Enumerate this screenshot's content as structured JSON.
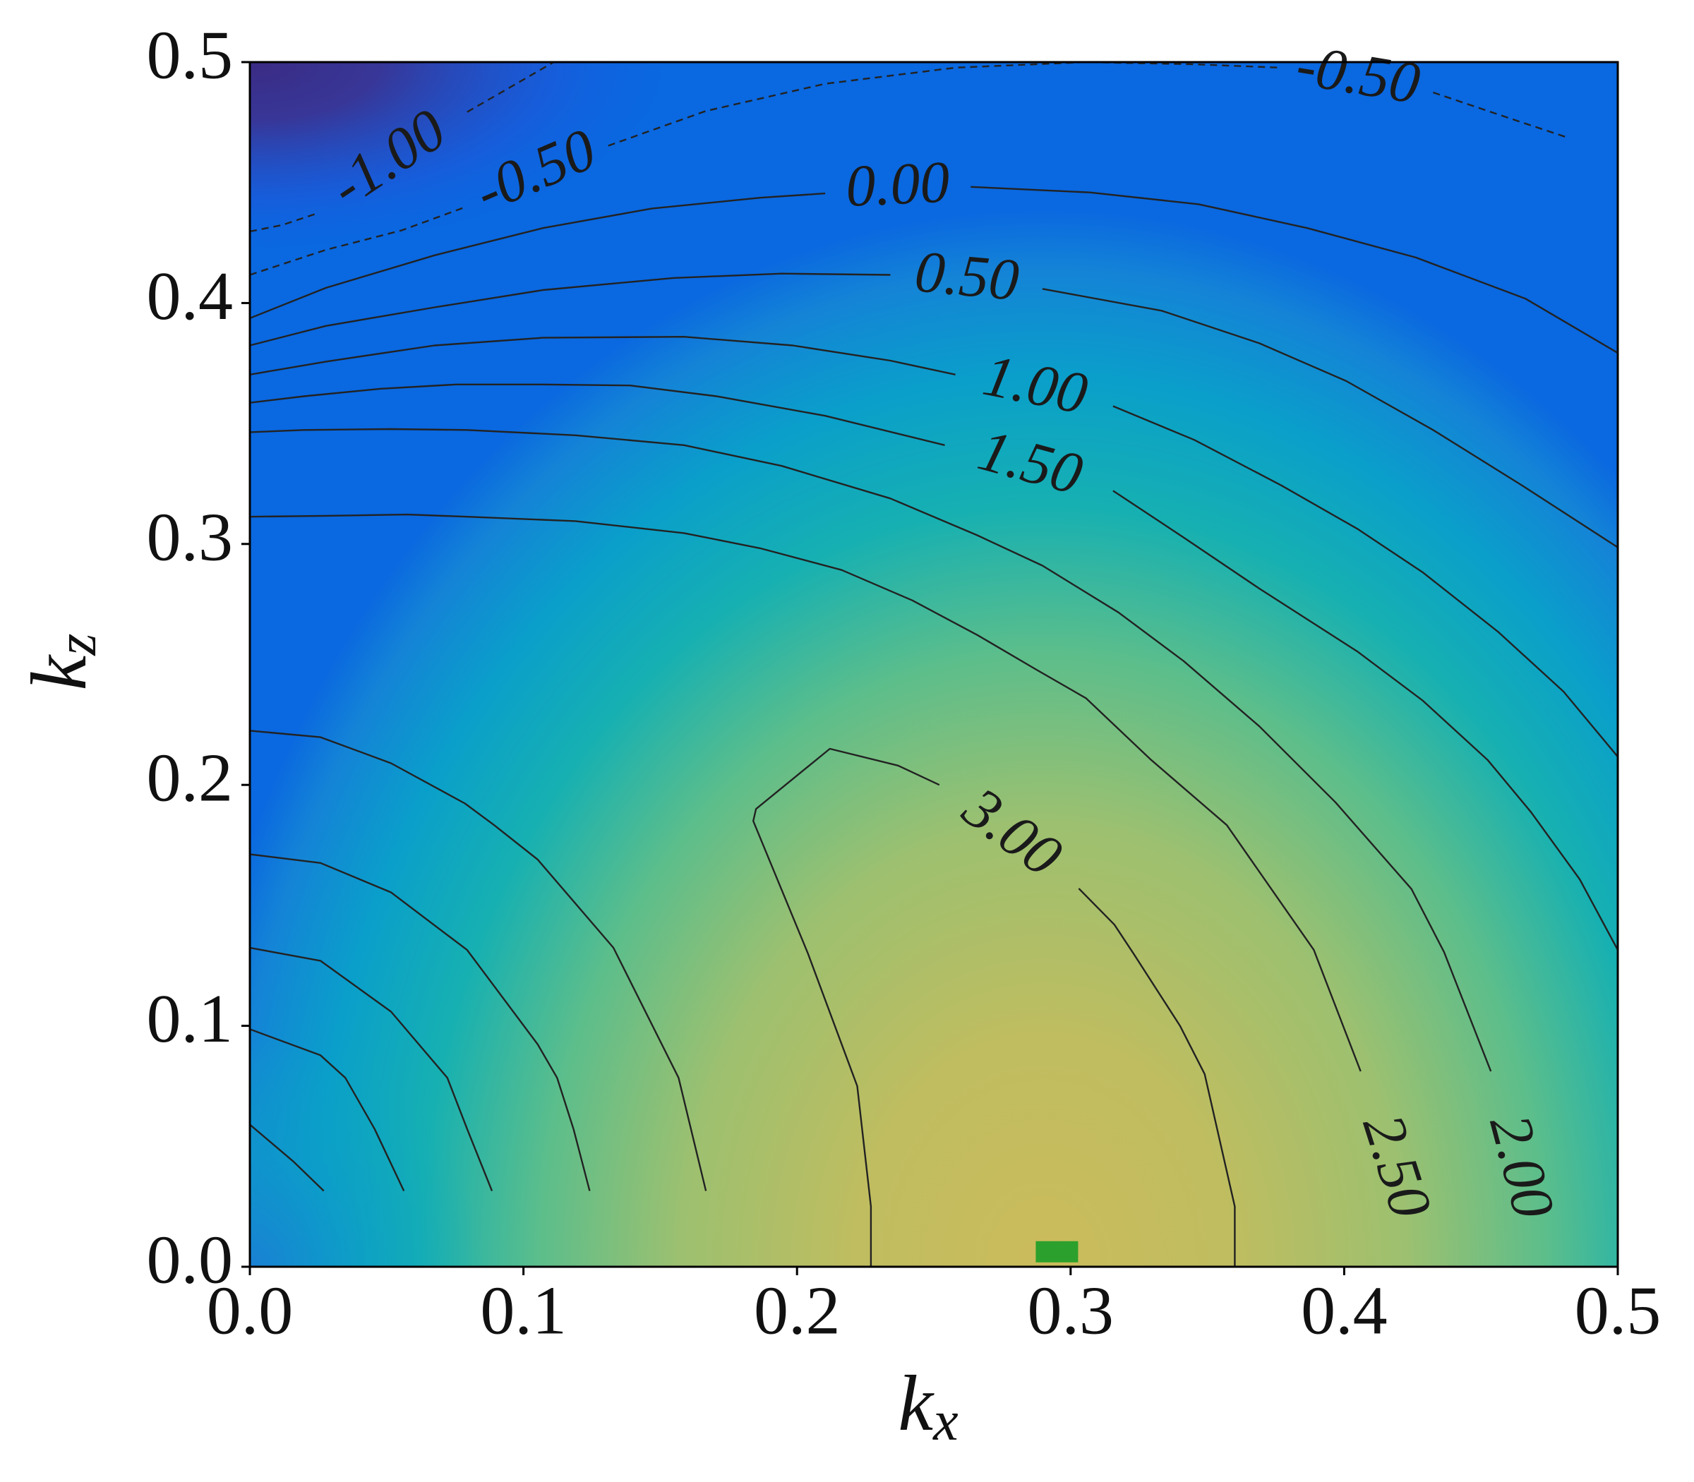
{
  "chart_data": {
    "type": "contour",
    "xlabel": {
      "base": "k",
      "sub": "x"
    },
    "ylabel": {
      "base": "k",
      "sub": "z"
    },
    "xlim": [
      0,
      0.5
    ],
    "ylim": [
      0,
      0.5
    ],
    "xticks": [
      {
        "value": 0,
        "label": "0.0"
      },
      0.1,
      0.2,
      0.3,
      0.4,
      0.5
    ],
    "yticks": [
      {
        "value": 0,
        "label": "0.0"
      },
      0.1,
      0.2,
      0.3,
      0.4,
      0.5
    ],
    "line_color": "#222222",
    "dashed_negative": true,
    "contours": [
      {
        "level": -1,
        "label": "-1.00",
        "x": [
          0,
          0.0119,
          0.0238,
          null,
          0.0794,
          0.0952,
          0.1111
        ],
        "y": [
          0.4297,
          0.4324,
          0.4369,
          null,
          0.4793,
          0.4896,
          0.5
        ]
      },
      {
        "level": -0.5,
        "label": "-0.50",
        "x": [
          0,
          0.0278,
          0.0556,
          0.0794,
          null,
          0.131,
          0.1667,
          0.2103,
          0.2579,
          0.3056,
          0.3452,
          0.377,
          null,
          0.4325,
          0.4583,
          0.4821
        ],
        "y": [
          0.4117,
          0.4221,
          0.4302,
          0.4401,
          null,
          0.4653,
          0.4797,
          0.491,
          0.4977,
          0.5,
          0.4991,
          0.4977,
          null,
          0.4874,
          0.4775,
          0.4685
        ]
      },
      {
        "level": 0,
        "label": "0.00",
        "x": [
          0,
          0.0278,
          0.0675,
          0.1071,
          0.1468,
          0.1865,
          0.2103,
          null,
          0.2635,
          0.3071,
          0.3468,
          0.3865,
          0.4262,
          0.4663,
          0.5
        ],
        "y": [
          0.3937,
          0.4063,
          0.4198,
          0.4311,
          0.4392,
          0.4437,
          0.4455,
          null,
          0.4482,
          0.4459,
          0.441,
          0.4311,
          0.4189,
          0.4018,
          0.3793
        ]
      },
      {
        "level": 0.5,
        "label": "0.50",
        "x": [
          0,
          0.0278,
          0.0675,
          0.1071,
          0.1548,
          0.1944,
          0.2341,
          null,
          0.2897,
          0.3333,
          0.369,
          0.4008,
          0.4325,
          0.4643,
          0.5
        ],
        "y": [
          0.3824,
          0.3905,
          0.3982,
          0.4054,
          0.4104,
          0.4122,
          0.4117,
          null,
          0.4059,
          0.3968,
          0.3833,
          0.3676,
          0.3473,
          0.3248,
          0.2986
        ]
      },
      {
        "level": 1,
        "label": "1.00",
        "x": [
          0,
          0.0278,
          0.0675,
          0.1071,
          0.1587,
          0.1984,
          0.2341,
          0.2579,
          null,
          0.3155,
          0.3452,
          0.377,
          0.4048,
          0.4286,
          0.4563,
          0.4802,
          0.5
        ],
        "y": [
          0.3703,
          0.3757,
          0.3824,
          0.3856,
          0.386,
          0.3824,
          0.3761,
          0.3703,
          null,
          0.3572,
          0.3432,
          0.3243,
          0.3063,
          0.2883,
          0.2635,
          0.2387,
          0.2117
        ]
      },
      {
        "level": 1.5,
        "label": "1.50",
        "x": [
          0,
          0.0198,
          0.0476,
          0.0754,
          0.1071,
          0.1389,
          0.1706,
          0.2103,
          0.254,
          null,
          0.3155,
          0.3413,
          0.369,
          0.4048,
          0.4286,
          0.4524,
          0.4683,
          0.4861,
          0.5
        ],
        "y": [
          0.3586,
          0.3613,
          0.3644,
          0.3662,
          0.3662,
          0.3658,
          0.3613,
          0.3532,
          0.341,
          null,
          0.3221,
          0.3027,
          0.2815,
          0.2554,
          0.2351,
          0.2104,
          0.1887,
          0.1608,
          0.1315
        ]
      },
      {
        "level": 2,
        "label": "2.00",
        "x": [
          0,
          0.0198,
          0.0516,
          0.0794,
          0.119,
          0.1587,
          0.1944,
          0.2341,
          0.2659,
          0.2897,
          0.3175,
          0.3413,
          0.369,
          0.3968,
          0.4246,
          0.4365,
          0.4536,
          null,
          0.4722
        ],
        "y": [
          0.3464,
          0.3473,
          0.3477,
          0.3473,
          0.3451,
          0.341,
          0.3324,
          0.3189,
          0.3036,
          0.291,
          0.2716,
          0.2514,
          0.2243,
          0.1928,
          0.1568,
          0.1306,
          0.0811,
          null,
          0.0009
        ]
      },
      {
        "level": 2.5,
        "label": "2.50",
        "x": [
          0,
          0.0278,
          0.0575,
          0.0794,
          0.119,
          0.1587,
          0.1865,
          0.2163,
          0.2421,
          0.2659,
          0.2877,
          0.3056,
          0.3294,
          0.3571,
          0.3889,
          0.406,
          null,
          0.4286
        ],
        "y": [
          0.3113,
          0.3117,
          0.3122,
          0.3113,
          0.3095,
          0.3045,
          0.2982,
          0.2892,
          0.2766,
          0.2622,
          0.2477,
          0.236,
          0.2104,
          0.1833,
          0.1315,
          0.0811,
          null,
          0.0009
        ]
      },
      {
        "level": 3,
        "label": "3.00",
        "x": [
          0.227,
          0.227,
          0.222,
          0.204,
          0.184,
          0.185,
          0.212,
          0.237,
          0.252,
          null,
          0.303,
          0.316,
          0.323,
          0.34,
          0.349,
          0.36,
          0.36
        ],
        "y": [
          0,
          0.025,
          0.075,
          0.13,
          0.185,
          0.19,
          0.215,
          0.208,
          0.2,
          null,
          0.157,
          0.142,
          0.13,
          0.1,
          0.08,
          0.025,
          0
        ]
      },
      {
        "level": 2.5,
        "x": [
          0,
          0.0258,
          0.0516,
          0.0786,
          0.0893,
          0.1052,
          0.1329,
          0.1567,
          0.1667
        ],
        "y": [
          0.2225,
          0.2198,
          0.209,
          0.1923,
          0.1833,
          0.169,
          0.1324,
          0.0784,
          0.0315
        ]
      },
      {
        "level": 2,
        "x": [
          0,
          0.0258,
          0.0516,
          0.0794,
          0.1052,
          0.1123,
          0.1183,
          0.1242
        ],
        "y": [
          0.1712,
          0.1676,
          0.1554,
          0.1315,
          0.0923,
          0.0784,
          0.0572,
          0.0315
        ]
      },
      {
        "level": 1.5,
        "x": [
          0,
          0.0258,
          0.0516,
          0.0722,
          0.0794,
          0.0885
        ],
        "y": [
          0.1324,
          0.127,
          0.1059,
          0.0784,
          0.0572,
          0.0315
        ]
      },
      {
        "level": 1,
        "x": [
          0,
          0.0258,
          0.0349,
          0.0456,
          0.0563
        ],
        "y": [
          0.0986,
          0.0878,
          0.0784,
          0.0572,
          0.0315
        ]
      },
      {
        "level": 0.5,
        "x": [
          0,
          0.0159,
          0.027
        ],
        "y": [
          0.059,
          0.0437,
          0.0315
        ]
      }
    ],
    "markers": [
      {
        "x": 0.295,
        "y": 0.003,
        "color": "#2ca02c"
      }
    ]
  }
}
